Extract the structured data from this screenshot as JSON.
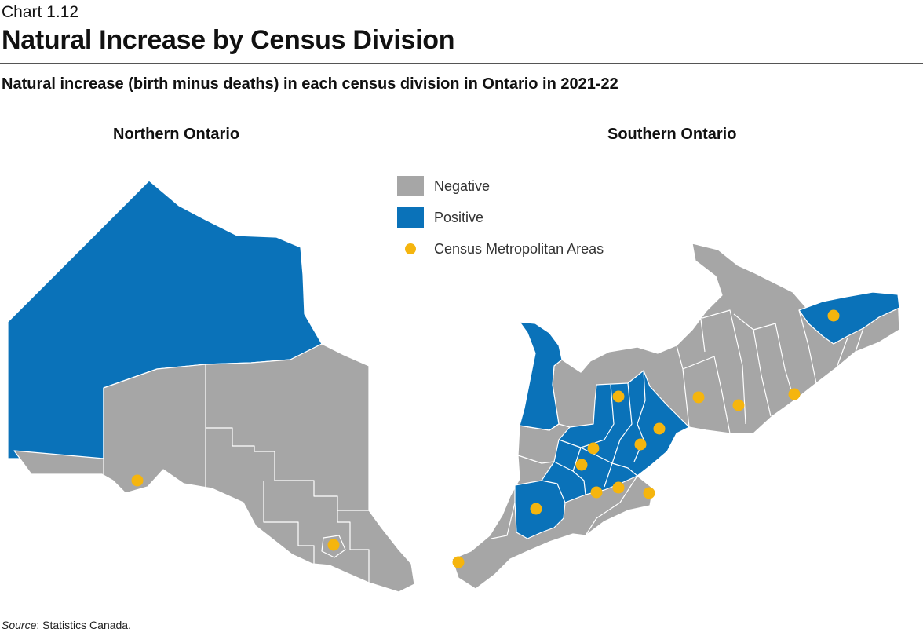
{
  "header": {
    "chart_label": "Chart 1.12",
    "title": "Natural Increase by Census Division",
    "subtitle": "Natural increase (birth minus deaths) in each census division in Ontario in 2021-22"
  },
  "maps": {
    "north_title": "Northern Ontario",
    "south_title": "Southern Ontario"
  },
  "legend": {
    "negative": "Negative",
    "positive": "Positive",
    "cma": "Census Metropolitan Areas"
  },
  "colors": {
    "negative": "#a6a6a6",
    "positive": "#0a72b9",
    "cma": "#f5b50e",
    "border": "#ffffff"
  },
  "source": {
    "label": "Source",
    "text": ": Statistics Canada."
  }
}
